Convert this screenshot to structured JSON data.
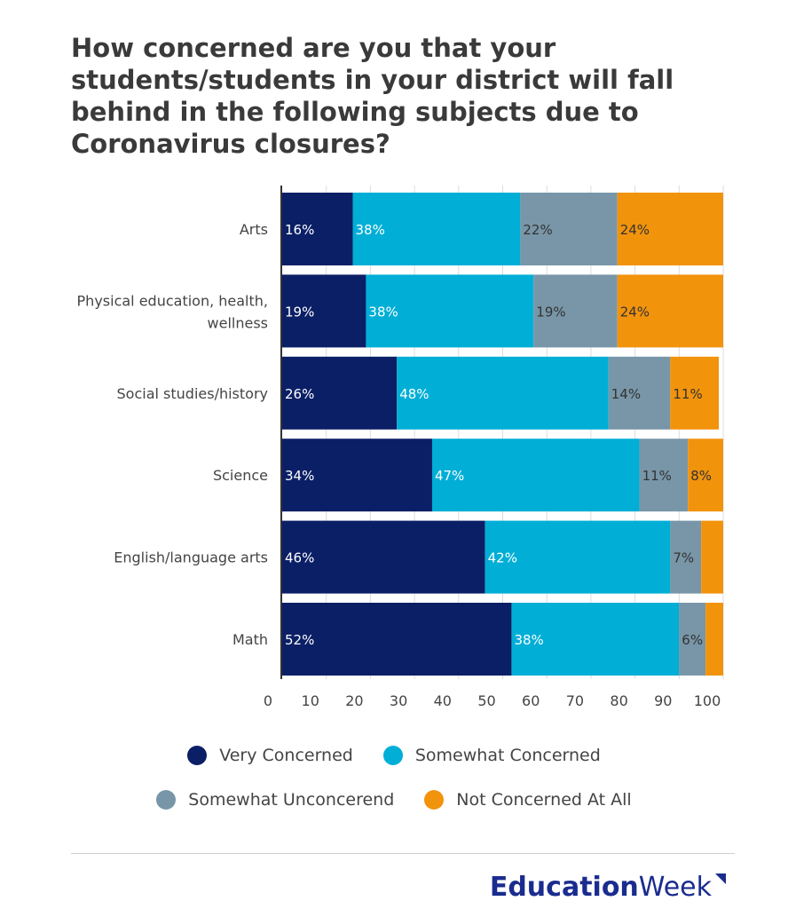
{
  "title": "How concerned are you that your students/students in your district will fall behind in the following subjects due to Coronavirus closures?",
  "brand": {
    "part1": "Education",
    "part2": "Week"
  },
  "colors": {
    "very": "#0b1f66",
    "somewhat": "#00aed6",
    "unconcerned": "#7896a8",
    "not_at_all": "#f2930c"
  },
  "legend": [
    {
      "label": "Very Concerned",
      "color": "#0b1f66"
    },
    {
      "label": "Somewhat Concerned",
      "color": "#00aed6"
    },
    {
      "label": "Somewhat Unconcerend",
      "color": "#7896a8"
    },
    {
      "label": "Not Concerned At All",
      "color": "#f2930c"
    }
  ],
  "chart_data": {
    "type": "bar",
    "orientation": "horizontal",
    "stacked": true,
    "categories": [
      "Arts",
      "Physical education, health, wellness",
      "Social studies/history",
      "Science",
      "English/language arts",
      "Math"
    ],
    "series": [
      {
        "name": "Very Concerned",
        "values": [
          16,
          19,
          26,
          34,
          46,
          52
        ],
        "labels": [
          "16%",
          "19%",
          "26%",
          "34%",
          "46%",
          "52%"
        ]
      },
      {
        "name": "Somewhat Concerned",
        "values": [
          38,
          38,
          48,
          47,
          42,
          38
        ],
        "labels": [
          "38%",
          "38%",
          "48%",
          "47%",
          "42%",
          "38%"
        ]
      },
      {
        "name": "Somewhat Unconcerend",
        "values": [
          22,
          19,
          14,
          11,
          7,
          6
        ],
        "labels": [
          "22%",
          "19%",
          "14%",
          "11%",
          "7%",
          "6%"
        ]
      },
      {
        "name": "Not Concerned At All",
        "values": [
          24,
          24,
          11,
          8,
          5,
          4
        ],
        "labels": [
          "24%",
          "24%",
          "11%",
          "8%",
          "",
          ""
        ]
      }
    ],
    "xlim": [
      0,
      100
    ],
    "xticks": [
      0,
      10,
      20,
      30,
      40,
      50,
      60,
      70,
      80,
      90,
      100
    ],
    "grid": true,
    "legend_position": "bottom"
  }
}
